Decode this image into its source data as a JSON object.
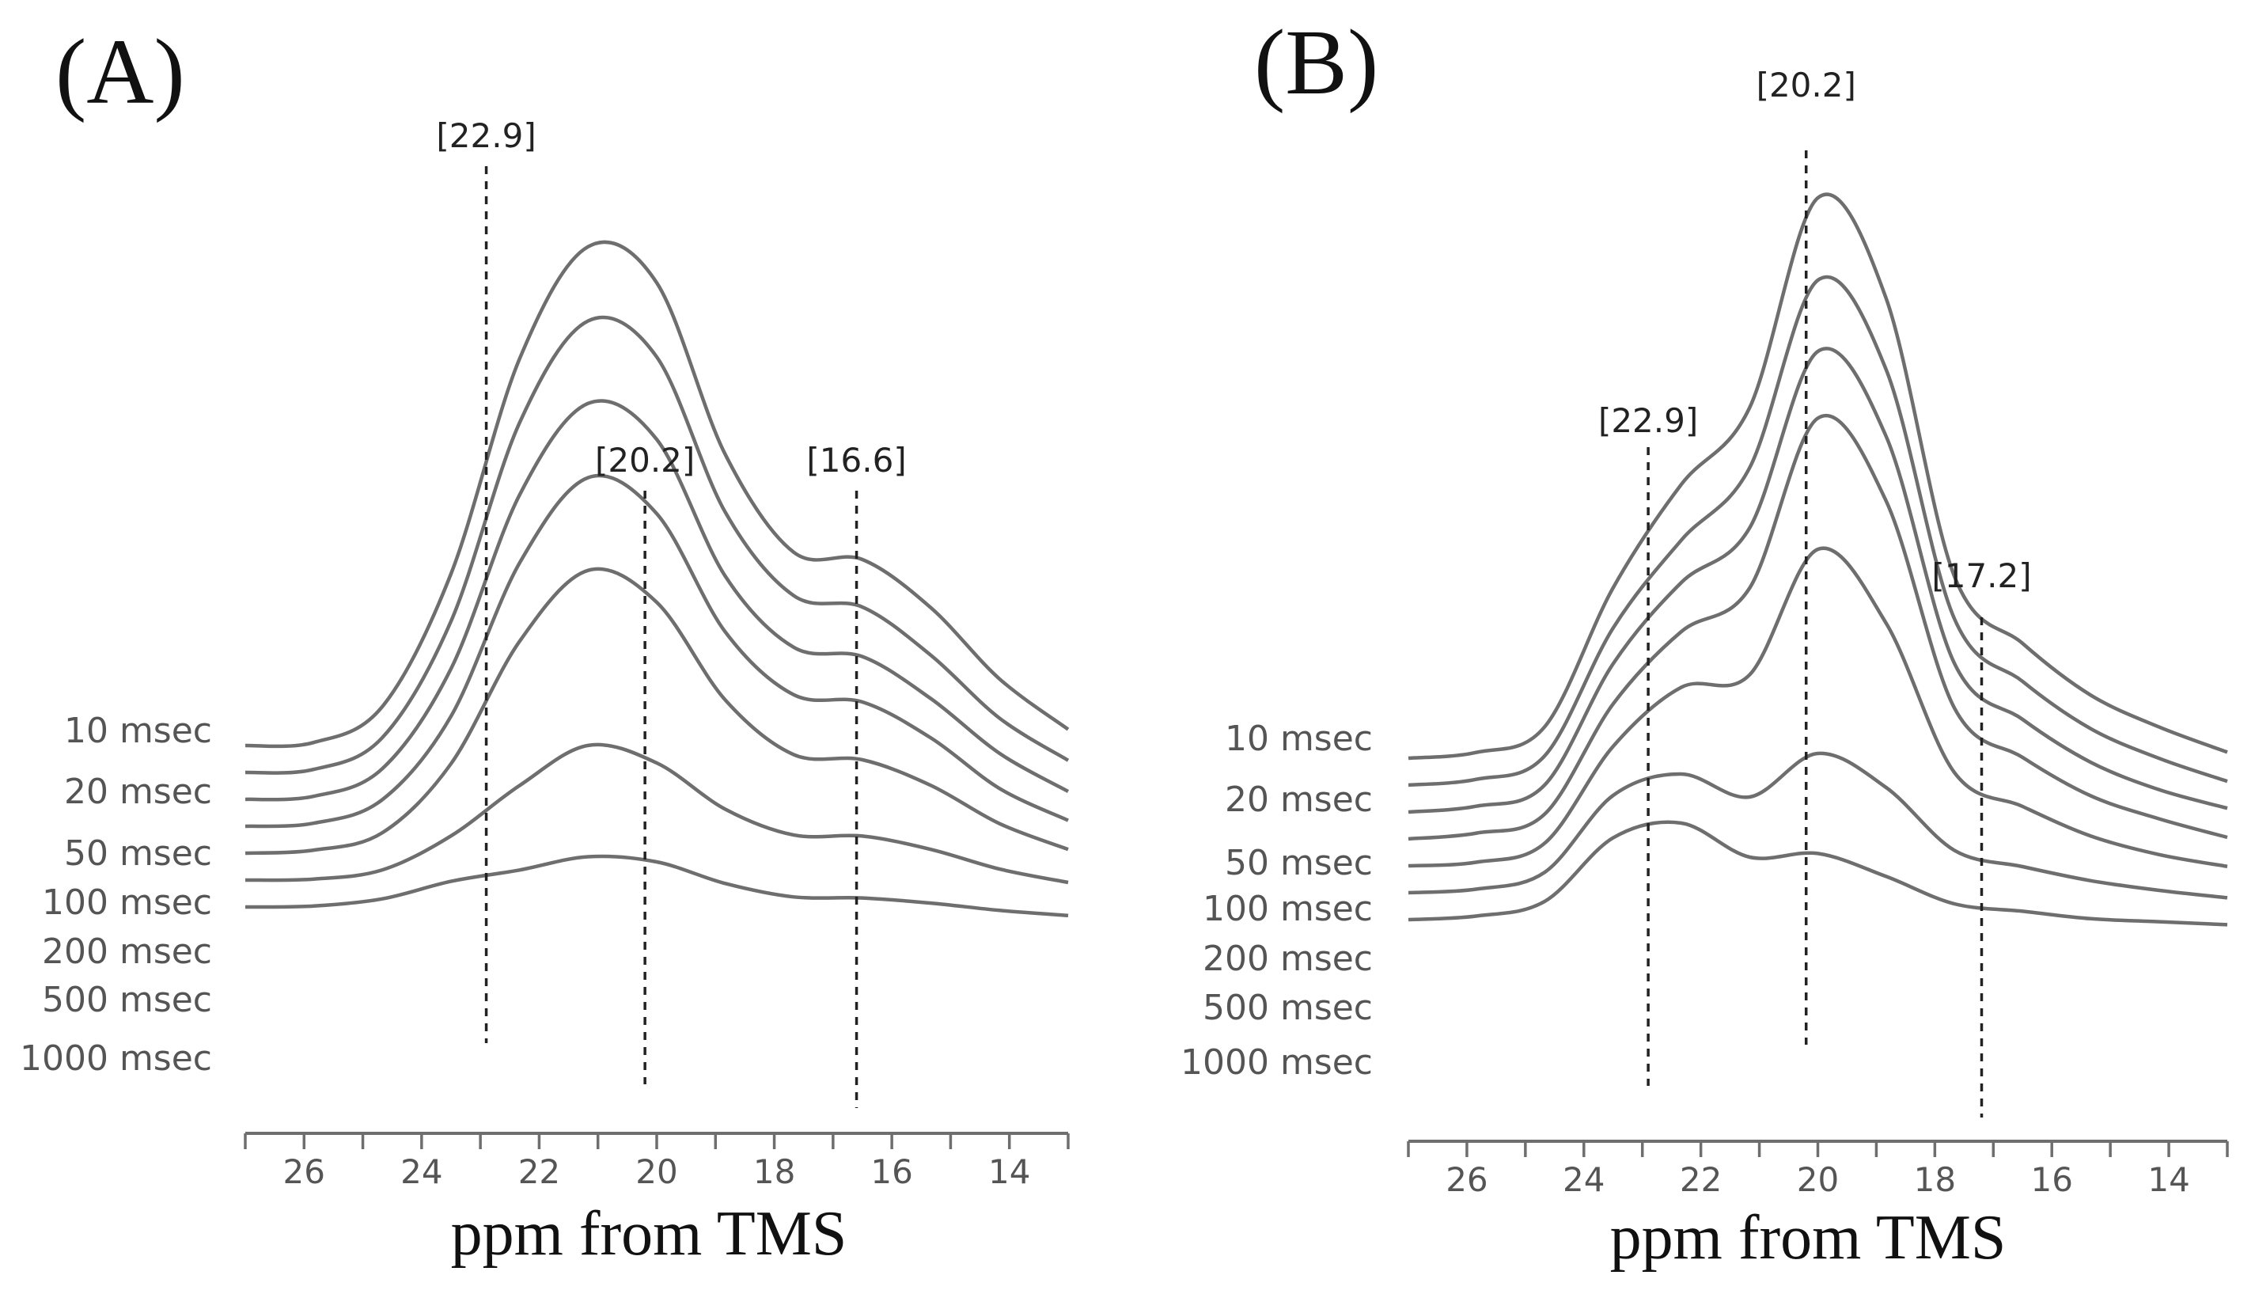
{
  "chart_data": [
    {
      "type": "line",
      "panel_label": "(A)",
      "xlabel": "ppm from TMS",
      "ylabel": "",
      "x_reversed": true,
      "xlim": [
        27,
        13
      ],
      "xticks": [
        26,
        24,
        22,
        20,
        18,
        16,
        14
      ],
      "grid": false,
      "markers": [
        {
          "label": "[20.2]",
          "x": 20.2
        },
        {
          "label": "[22.9]",
          "x": 22.9
        },
        {
          "label": "[16.6]",
          "x": 16.6
        }
      ],
      "series": [
        {
          "name": "10 msec",
          "values": [
            0,
            0.02,
            0.2,
            0.85,
            1.9,
            2.45,
            2.28,
            1.45,
            0.98,
            0.95,
            0.72,
            0.38,
            0.14
          ]
        },
        {
          "name": "20 msec",
          "values": [
            0,
            0.02,
            0.18,
            0.75,
            1.72,
            2.22,
            2.05,
            1.3,
            0.9,
            0.85,
            0.62,
            0.32,
            0.12
          ]
        },
        {
          "name": "50 msec",
          "values": [
            0,
            0.02,
            0.16,
            0.65,
            1.5,
            1.95,
            1.78,
            1.12,
            0.78,
            0.74,
            0.54,
            0.28,
            0.1
          ]
        },
        {
          "name": "100 msec",
          "values": [
            0,
            0.02,
            0.14,
            0.55,
            1.3,
            1.72,
            1.55,
            0.98,
            0.68,
            0.65,
            0.48,
            0.24,
            0.09
          ]
        },
        {
          "name": "200 msec",
          "values": [
            0,
            0.02,
            0.11,
            0.45,
            1.05,
            1.4,
            1.25,
            0.78,
            0.52,
            0.5,
            0.38,
            0.2,
            0.08
          ]
        },
        {
          "name": "500 msec",
          "values": [
            0,
            0.01,
            0.06,
            0.23,
            0.48,
            0.68,
            0.6,
            0.38,
            0.26,
            0.26,
            0.2,
            0.11,
            0.05
          ]
        },
        {
          "name": "1000 msec",
          "values": [
            0,
            0.01,
            0.05,
            0.14,
            0.2,
            0.27,
            0.25,
            0.15,
            0.09,
            0.09,
            0.07,
            0.04,
            0.02
          ]
        }
      ]
    },
    {
      "type": "line",
      "panel_label": "(B)",
      "xlabel": "ppm from TMS",
      "ylabel": "",
      "x_reversed": true,
      "xlim": [
        27,
        13
      ],
      "xticks": [
        26,
        24,
        22,
        20,
        18,
        16,
        14
      ],
      "grid": false,
      "markers": [
        {
          "label": "[20.2]",
          "x": 20.2
        },
        {
          "label": "[22.9]",
          "x": 22.9
        },
        {
          "label": "[17.2]",
          "x": 17.2
        }
      ],
      "series": [
        {
          "name": "10 msec",
          "values": [
            0,
            0.03,
            0.15,
            0.78,
            1.25,
            1.6,
            2.55,
            2.1,
            0.85,
            0.55,
            0.32,
            0.18,
            0.07
          ]
        },
        {
          "name": "20 msec",
          "values": [
            0,
            0.03,
            0.14,
            0.72,
            1.12,
            1.45,
            2.3,
            1.9,
            0.78,
            0.5,
            0.29,
            0.16,
            0.06
          ]
        },
        {
          "name": "50 msec",
          "values": [
            0,
            0.03,
            0.13,
            0.68,
            1.05,
            1.3,
            2.1,
            1.72,
            0.7,
            0.45,
            0.26,
            0.14,
            0.06
          ]
        },
        {
          "name": "100 msec",
          "values": [
            0,
            0.03,
            0.12,
            0.62,
            0.95,
            1.15,
            1.92,
            1.55,
            0.62,
            0.4,
            0.23,
            0.13,
            0.05
          ]
        },
        {
          "name": "200 msec",
          "values": [
            0,
            0.02,
            0.11,
            0.55,
            0.82,
            0.88,
            1.45,
            1.12,
            0.45,
            0.3,
            0.17,
            0.09,
            0.04
          ]
        },
        {
          "name": "500 msec",
          "values": [
            0,
            0.02,
            0.1,
            0.45,
            0.55,
            0.45,
            0.65,
            0.5,
            0.22,
            0.15,
            0.09,
            0.05,
            0.02
          ]
        },
        {
          "name": "1000 msec",
          "values": [
            0,
            0.02,
            0.09,
            0.38,
            0.45,
            0.3,
            0.32,
            0.22,
            0.1,
            0.07,
            0.04,
            0.03,
            0.02
          ]
        }
      ]
    }
  ]
}
